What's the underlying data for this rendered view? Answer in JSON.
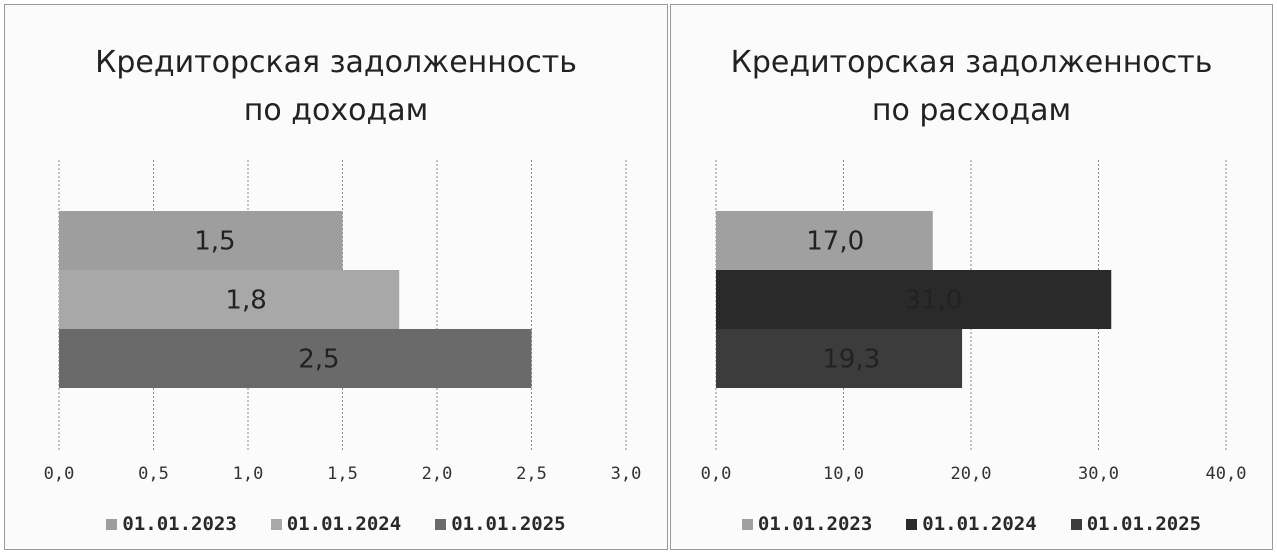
{
  "chart_data": [
    {
      "type": "bar",
      "orientation": "horizontal",
      "title": "Кредиторская задолженность\nпо доходам",
      "series": [
        {
          "name": "01.01.2023",
          "values": [
            1.5
          ],
          "label": "1,5",
          "color": "#9e9e9e"
        },
        {
          "name": "01.01.2024",
          "values": [
            1.8
          ],
          "label": "1,8",
          "color": "#a8a8a8"
        },
        {
          "name": "01.01.2025",
          "values": [
            2.5
          ],
          "label": "2,5",
          "color": "#6a6a6a"
        }
      ],
      "xlim": [
        0,
        3
      ],
      "x_ticks": [
        "0,0",
        "0,5",
        "1,0",
        "1,5",
        "2,0",
        "2,5",
        "3,0"
      ],
      "grid": true,
      "legend_position": "bottom"
    },
    {
      "type": "bar",
      "orientation": "horizontal",
      "title": "Кредиторская задолженность\nпо расходам",
      "series": [
        {
          "name": "01.01.2023",
          "values": [
            17.0
          ],
          "label": "17,0",
          "color": "#a0a0a0"
        },
        {
          "name": "01.01.2024",
          "values": [
            31.0
          ],
          "label": "31,0",
          "color": "#2a2a2a"
        },
        {
          "name": "01.01.2025",
          "values": [
            19.3
          ],
          "label": "19,3",
          "color": "#3c3c3c"
        }
      ],
      "xlim": [
        0,
        40
      ],
      "x_ticks": [
        "0,0",
        "10,0",
        "20,0",
        "30,0",
        "40,0"
      ],
      "grid": true,
      "legend_position": "bottom"
    }
  ]
}
